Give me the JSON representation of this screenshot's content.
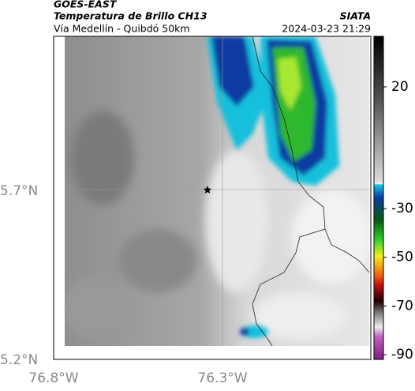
{
  "header": {
    "source": "GOES-EAST",
    "title": "Temperatura de Brillo CH13",
    "subtitle": "Vía Medellín - Quibdó 50km",
    "credit": "SIATA",
    "timestamp": "2024-03-23 21:29"
  },
  "map": {
    "lat_labels": [
      "5.7°N",
      "5.2°N"
    ],
    "lon_labels": [
      "76.8°W",
      "76.3°W"
    ]
  },
  "colorbar": {
    "ticks": [
      20,
      -30,
      -50,
      -70,
      -90
    ]
  }
}
